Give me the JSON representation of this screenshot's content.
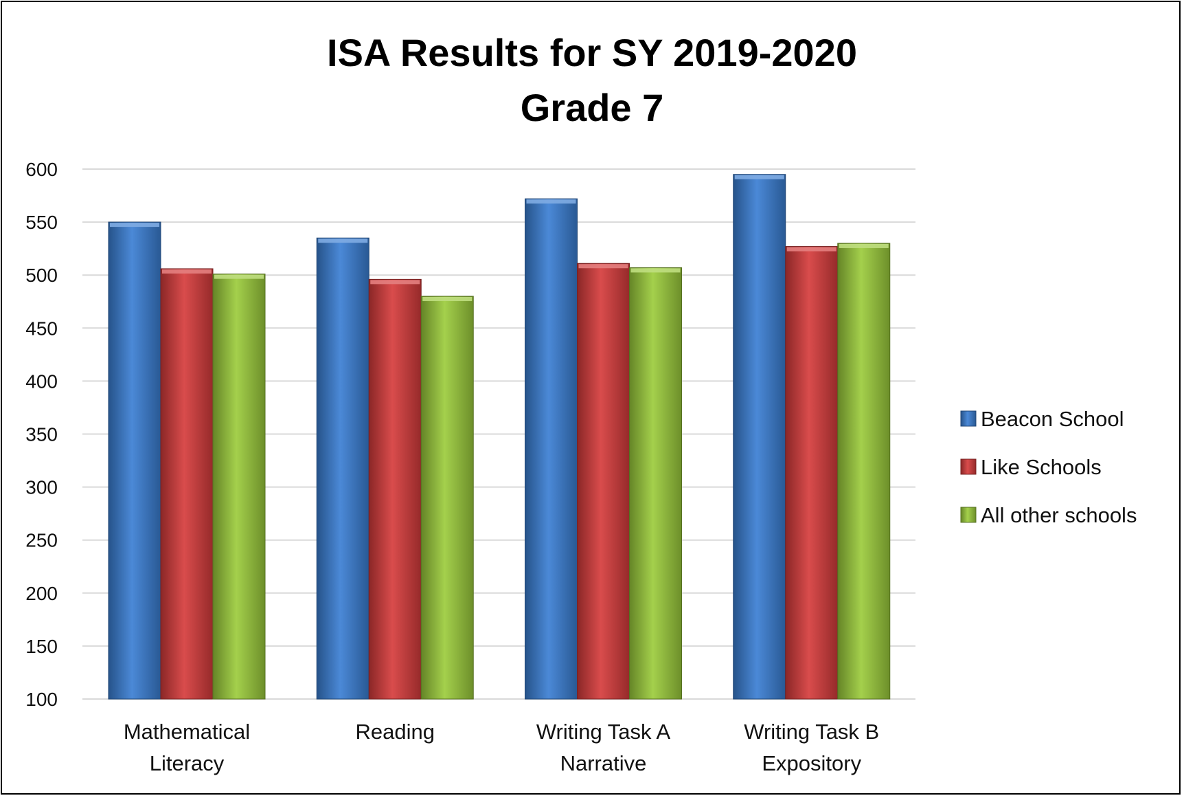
{
  "chart_data": {
    "type": "bar",
    "title": "ISA Results for SY 2019-2020",
    "subtitle": "Grade 7",
    "categories": [
      [
        "Mathematical",
        "Literacy"
      ],
      [
        "Reading"
      ],
      [
        "Writing Task A",
        "Narrative"
      ],
      [
        "Writing Task B",
        "Expository"
      ]
    ],
    "series": [
      {
        "name": "Beacon School",
        "color": "#3b7fd4",
        "values": [
          550,
          535,
          572,
          595
        ]
      },
      {
        "name": "Like Schools",
        "color": "#d63c3c",
        "values": [
          506,
          496,
          511,
          527
        ]
      },
      {
        "name": "All other schools",
        "color": "#9ccc3c",
        "values": [
          501,
          480,
          507,
          530
        ]
      }
    ],
    "ylim": [
      100,
      600
    ],
    "yticks": [
      100,
      150,
      200,
      250,
      300,
      350,
      400,
      450,
      500,
      550,
      600
    ],
    "grid": true,
    "legend": "right",
    "xlabel": "",
    "ylabel": ""
  }
}
